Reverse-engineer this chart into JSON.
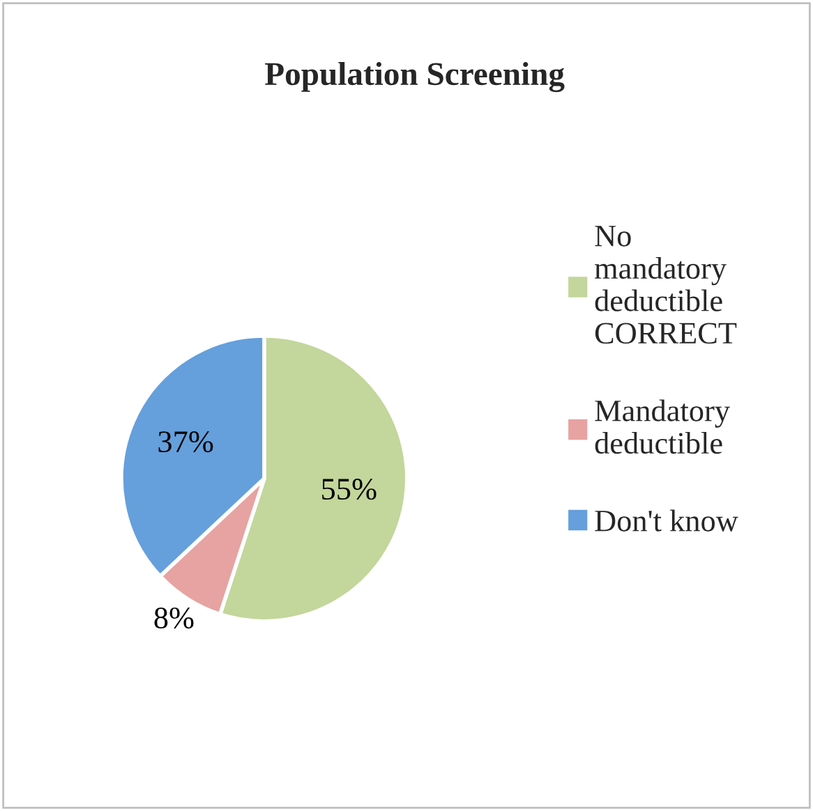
{
  "chart_data": {
    "type": "pie",
    "title": "Population Screening",
    "categories": [
      "No mandatory deductible CORRECT",
      "Mandatory deductible",
      "Don't know"
    ],
    "values": [
      55,
      8,
      37
    ],
    "colors": [
      "#c3d69b",
      "#e6a3a1",
      "#659fdc"
    ],
    "value_labels": [
      "55%",
      "8%",
      "37%"
    ],
    "legend": "right"
  }
}
